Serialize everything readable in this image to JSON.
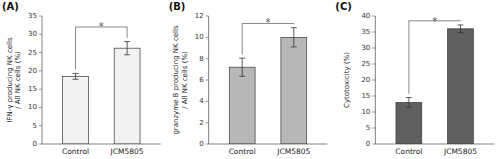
{
  "chart_data": [
    {
      "type": "bar",
      "title": "(A)",
      "ylabel": "IFN-γ producing NK cells\n/ All NK cells (%)",
      "categories": [
        "Control",
        "JCM5805"
      ],
      "values": [
        18.5,
        26.2
      ],
      "errors": [
        0.8,
        1.8
      ],
      "ylim": [
        0,
        35
      ],
      "yticks": [
        0,
        5,
        10,
        15,
        20,
        25,
        30,
        35
      ],
      "color": "#f2f2f2",
      "grid": false,
      "annotations": [
        {
          "text": "*",
          "y": 32.5,
          "bracket": 32.0
        }
      ]
    },
    {
      "type": "bar",
      "title": "(B)",
      "ylabel": "granzyme B producing NK cells\n/ All NK cells (%)",
      "categories": [
        "Control",
        "JCM5805"
      ],
      "values": [
        7.2,
        10.0
      ],
      "errors": [
        0.85,
        0.9
      ],
      "ylim": [
        0,
        12
      ],
      "yticks": [
        0,
        2,
        4,
        6,
        8,
        10,
        12
      ],
      "color": "#b8b8b8",
      "grid": false,
      "annotations": [
        {
          "text": "*",
          "y": 11.5,
          "bracket": 11.3
        }
      ]
    },
    {
      "type": "bar",
      "title": "(C)",
      "ylabel": "Cytotoxicity (%)",
      "categories": [
        "Control",
        "JCM5805"
      ],
      "values": [
        13.0,
        36.0
      ],
      "errors": [
        1.5,
        1.2
      ],
      "ylim": [
        0,
        40
      ],
      "yticks": [
        0,
        5,
        10,
        15,
        20,
        25,
        30,
        35,
        40
      ],
      "color": "#606060",
      "grid": false,
      "annotations": [
        {
          "text": "*",
          "y": 38.8,
          "bracket": 38.5
        }
      ]
    }
  ]
}
